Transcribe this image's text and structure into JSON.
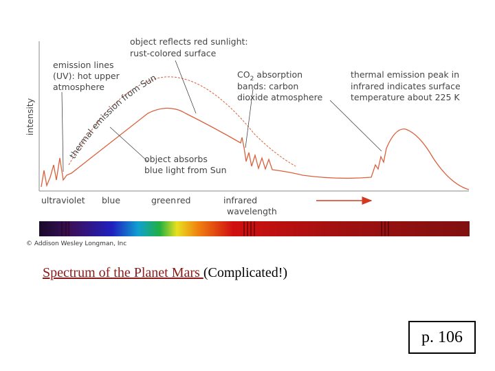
{
  "diagram": {
    "y_axis_label": "intensity",
    "annotations": {
      "reflects": [
        "object reflects red sunlight:",
        "rust-colored surface"
      ],
      "emission_lines": [
        "emission lines",
        "(UV): hot upper",
        "atmosphere"
      ],
      "thermal_sun": "thermal emission from Sun",
      "co2": {
        "first_line": {
          "main": "CO",
          "sub": "2",
          "rest": " absorption"
        },
        "lines": [
          "bands: carbon",
          "dioxide atmosphere"
        ]
      },
      "thermal_peak": [
        "thermal emission peak in",
        "infrared indicates surface",
        "temperature about 225 K"
      ],
      "absorbs": [
        "object absorbs",
        "blue light from Sun"
      ]
    },
    "bands": [
      "ultraviolet",
      "blue",
      "green",
      "red",
      "infrared"
    ],
    "wavelength_label": "wavelength",
    "copyright": "© Addison Wesley Longman, Inc"
  },
  "title": {
    "underlined": "Spectrum of the Planet Mars ",
    "rest": "(Complicated!)"
  },
  "page_number": "p. 106"
}
